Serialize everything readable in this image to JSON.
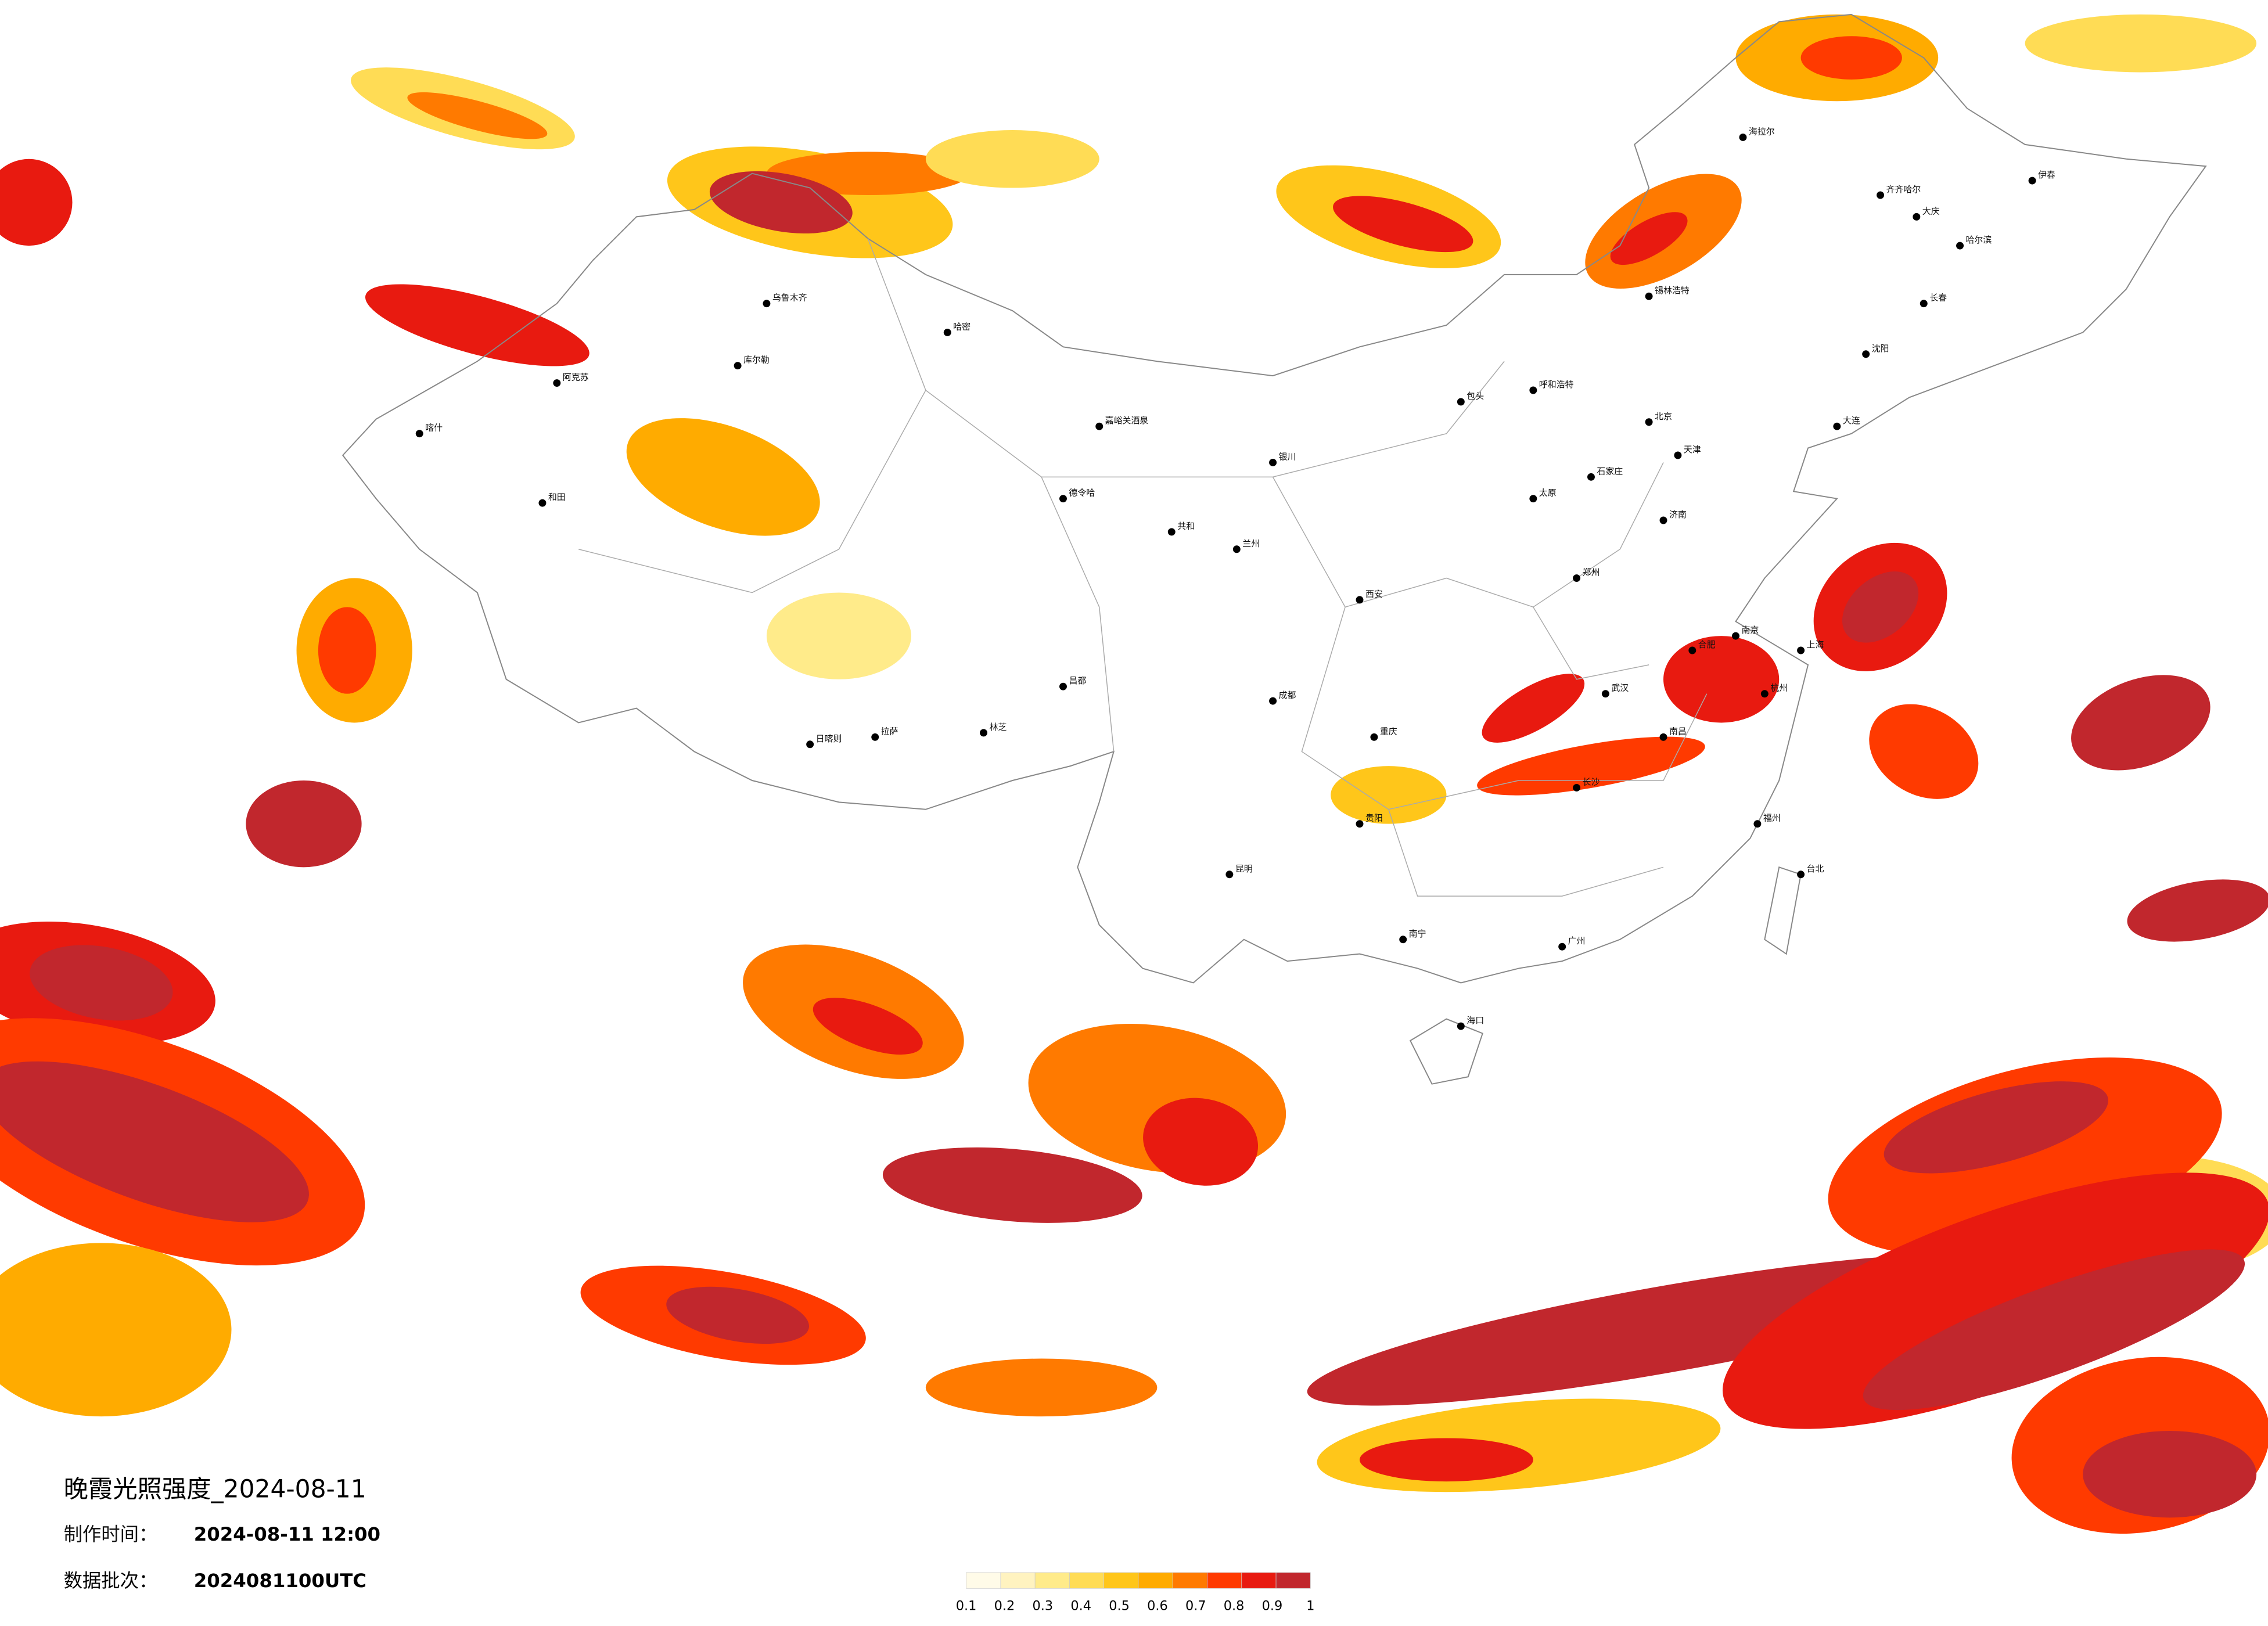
{
  "header": {
    "title": "晚霞光照强度_2024-08-11",
    "made_label": "制作时间：",
    "made_value": "2024-08-11 12:00",
    "batch_label": "数据批次：",
    "batch_value": "2024081100UTC"
  },
  "legend": {
    "labels": [
      0.1,
      0.2,
      0.3,
      0.4,
      0.5,
      0.6,
      0.7,
      0.8,
      0.9,
      1
    ],
    "colors": [
      "#fffbe8",
      "#fff3c0",
      "#ffeb8a",
      "#ffdc55",
      "#ffc61a",
      "#ffab00",
      "#ff7a00",
      "#ff3a00",
      "#e81a10",
      "#c1272d"
    ]
  },
  "places": {
    "cities": [
      "乌鲁木齐",
      "哈密",
      "库尔勒",
      "阿克苏",
      "喀什",
      "和田",
      "日喀则",
      "拉萨",
      "林芝",
      "昌都",
      "嘉峪关酒泉",
      "德令哈",
      "共和",
      "兰州",
      "银川",
      "包头",
      "呼和浩特",
      "北京",
      "天津",
      "石家庄",
      "太原",
      "济南",
      "郑州",
      "西安",
      "武汉",
      "长沙",
      "南昌",
      "合肥",
      "南京",
      "上海",
      "杭州",
      "福州",
      "广州",
      "南宁",
      "海口",
      "贵阳",
      "昆明",
      "成都",
      "重庆",
      "沈阳",
      "长春",
      "哈尔滨",
      "齐齐哈尔",
      "大庆",
      "伊春",
      "大连",
      "台北",
      "海拉尔",
      "锡林浩特"
    ]
  }
}
